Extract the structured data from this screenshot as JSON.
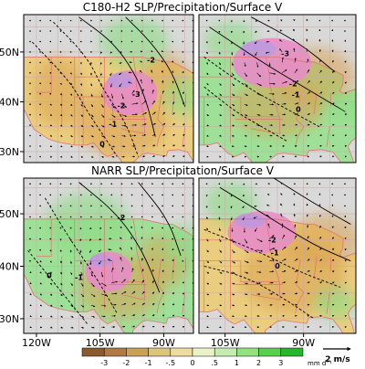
{
  "titles": {
    "top": "C180-H2 SLP/Precipitation/Surface V",
    "bottom": "NARR SLP/Precipitation/Surface V"
  },
  "chart_data": {
    "type": "heatmap",
    "panels": [
      {
        "id": "top-left",
        "row": "C180-H2",
        "contour_labels": [
          {
            "text": "-2",
            "lon": -93,
            "lat": 48.3
          },
          {
            "text": "-3",
            "lon": -96.5,
            "lat": 41.5
          },
          {
            "text": "-2",
            "lon": -100,
            "lat": 39.2
          },
          {
            "text": "-1",
            "lon": -102,
            "lat": 35.5
          },
          {
            "text": "0",
            "lon": -104.5,
            "lat": 31.5
          }
        ]
      },
      {
        "id": "top-right",
        "row": "C180-H2",
        "contour_labels": [
          {
            "text": "-3",
            "lon": -93.5,
            "lat": 49.6
          },
          {
            "text": "-2",
            "lon": -92,
            "lat": 43.6
          },
          {
            "text": "-1",
            "lon": -91.5,
            "lat": 41.4
          },
          {
            "text": "0",
            "lon": -91,
            "lat": 38.4
          }
        ]
      },
      {
        "id": "bottom-left",
        "row": "NARR",
        "contour_labels": [
          {
            "text": "-2",
            "lon": -100,
            "lat": 49.2
          },
          {
            "text": "-1",
            "lon": -110,
            "lat": 37.8
          },
          {
            "text": "0",
            "lon": -117,
            "lat": 38.2
          }
        ]
      },
      {
        "id": "bottom-right",
        "row": "NARR",
        "contour_labels": [
          {
            "text": "-2",
            "lon": -96,
            "lat": 45
          },
          {
            "text": "-1",
            "lon": -95.5,
            "lat": 42.5
          },
          {
            "text": "0",
            "lon": -95,
            "lat": 40
          }
        ]
      }
    ],
    "lat_ticks": [
      "50N",
      "40N",
      "30N"
    ],
    "lon_ticks_left": [
      "120W",
      "105W",
      "90W"
    ],
    "lon_ticks_right": [
      "105W",
      "90W"
    ],
    "colorbar": {
      "ticks": [
        "-3",
        "-2",
        "-1",
        "-.5",
        "0",
        ".5",
        "1",
        "2",
        "3"
      ],
      "unit": "mm d⁻¹",
      "colors": [
        "#8a5a2e",
        "#b07a42",
        "#c9a25a",
        "#dcc47a",
        "#ecdc9e",
        "#e9f2c9",
        "#c4ebb0",
        "#93e07e",
        "#58cf4f",
        "#26b52b"
      ]
    },
    "vector_reference": "2 m/s",
    "colors": {
      "sea": "#d9d9d9",
      "dry": "#ebcd80",
      "wet": "#9fe098",
      "low_pressure": "#e88cc8",
      "state_borders": "#e07272"
    }
  }
}
